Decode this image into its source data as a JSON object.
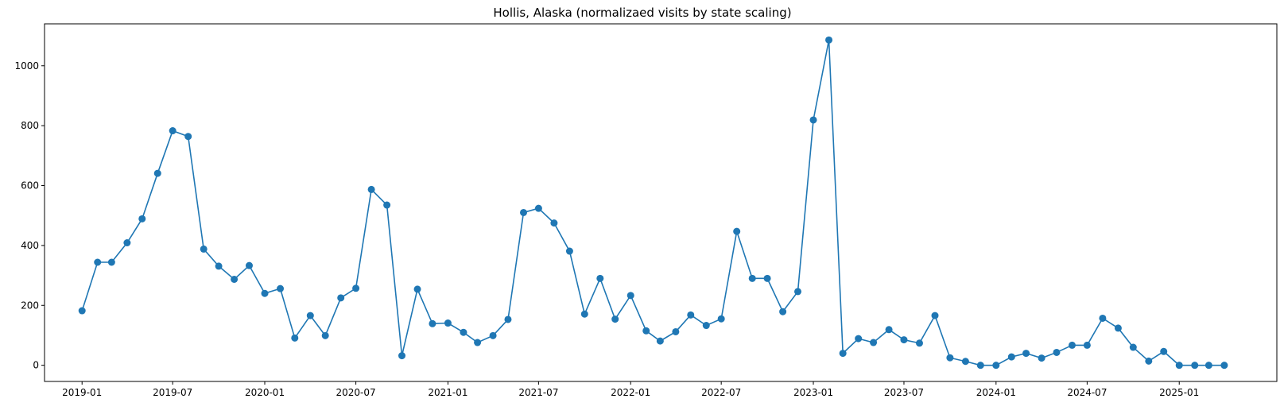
{
  "chart_data": {
    "type": "line",
    "title": "Hollis, Alaska (normalizaed visits by state scaling)",
    "xlabel": "",
    "ylabel": "",
    "grid": false,
    "legend": "none",
    "color": "#1f77b4",
    "marker": "circle",
    "xlim": [
      "2018-10-18",
      "2025-07-15"
    ],
    "ylim": [
      -54,
      1140
    ],
    "x_ticks": [
      "2019-01",
      "2019-07",
      "2020-01",
      "2020-07",
      "2021-01",
      "2021-07",
      "2022-01",
      "2022-07",
      "2023-01",
      "2023-07",
      "2024-01",
      "2024-07",
      "2025-01"
    ],
    "y_ticks": [
      0,
      200,
      400,
      600,
      800,
      1000
    ],
    "series": [
      {
        "name": "",
        "x": [
          "2019-01-01",
          "2019-02-01",
          "2019-03-01",
          "2019-04-01",
          "2019-05-01",
          "2019-06-01",
          "2019-07-01",
          "2019-08-01",
          "2019-09-01",
          "2019-10-01",
          "2019-11-01",
          "2019-12-01",
          "2020-01-01",
          "2020-02-01",
          "2020-03-01",
          "2020-04-01",
          "2020-05-01",
          "2020-06-01",
          "2020-07-01",
          "2020-08-01",
          "2020-09-01",
          "2020-10-01",
          "2020-11-01",
          "2020-12-01",
          "2021-01-01",
          "2021-02-01",
          "2021-03-01",
          "2021-04-01",
          "2021-05-01",
          "2021-06-01",
          "2021-07-01",
          "2021-08-01",
          "2021-09-01",
          "2021-10-01",
          "2021-11-01",
          "2021-12-01",
          "2022-01-01",
          "2022-02-01",
          "2022-03-01",
          "2022-04-01",
          "2022-05-01",
          "2022-06-01",
          "2022-07-01",
          "2022-08-01",
          "2022-09-01",
          "2022-10-01",
          "2022-11-01",
          "2022-12-01",
          "2023-01-01",
          "2023-02-01",
          "2023-03-01",
          "2023-04-01",
          "2023-05-01",
          "2023-06-01",
          "2023-07-01",
          "2023-08-01",
          "2023-09-01",
          "2023-10-01",
          "2023-11-01",
          "2023-12-01",
          "2024-01-01",
          "2024-02-01",
          "2024-03-01",
          "2024-04-01",
          "2024-05-01",
          "2024-06-01",
          "2024-07-01",
          "2024-08-01",
          "2024-09-01",
          "2024-10-01",
          "2024-11-01",
          "2024-12-01",
          "2025-01-01",
          "2025-02-01",
          "2025-03-01",
          "2025-04-01"
        ],
        "y": [
          182,
          344,
          344,
          409,
          489,
          641,
          783,
          764,
          388,
          331,
          287,
          333,
          240,
          256,
          91,
          166,
          99,
          225,
          257,
          587,
          535,
          32,
          254,
          139,
          141,
          110,
          76,
          99,
          153,
          510,
          524,
          475,
          381,
          171,
          290,
          154,
          233,
          115,
          81,
          112,
          168,
          133,
          155,
          447,
          290,
          290,
          179,
          246,
          819,
          1086,
          40,
          89,
          76,
          119,
          85,
          74,
          166,
          25,
          13,
          0,
          0,
          28,
          40,
          24,
          43,
          67,
          67,
          157,
          124,
          60,
          14,
          46,
          0,
          0,
          0,
          0
        ]
      }
    ]
  }
}
